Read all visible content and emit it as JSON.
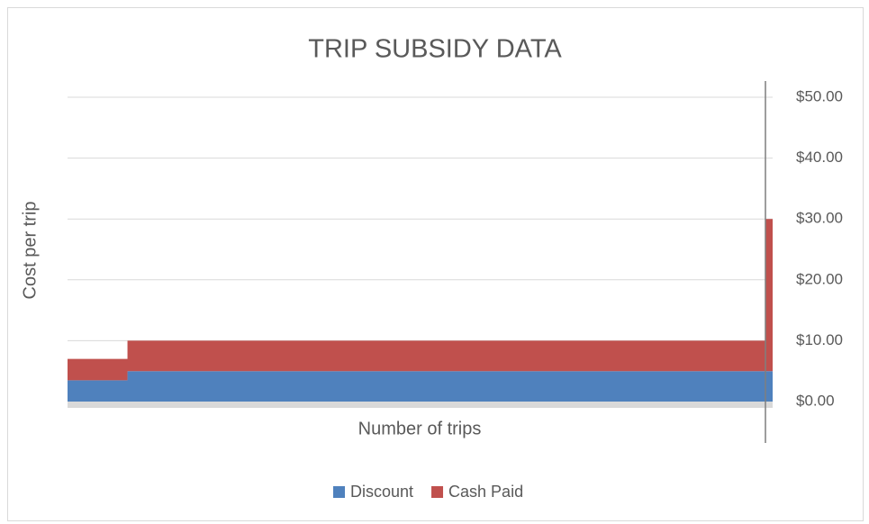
{
  "chart_data": {
    "type": "area",
    "stacked": true,
    "step": true,
    "title": "TRIP SUBSIDY DATA",
    "x_label": "Number of trips",
    "y_label": "Cost per trip",
    "x": [
      0,
      8.5,
      99,
      100
    ],
    "xlim": [
      0,
      100
    ],
    "series": [
      {
        "name": "Discount",
        "color": "#4f81bd",
        "values": [
          3.5,
          5,
          5,
          5
        ]
      },
      {
        "name": "Cash Paid",
        "color": "#c0504d",
        "values": [
          3.5,
          5,
          25,
          25
        ]
      }
    ],
    "ylim": [
      0,
      50
    ],
    "y_axis_side": "right",
    "yticks": [
      {
        "value": 0,
        "label": "$0.00"
      },
      {
        "value": 10,
        "label": "$10.00"
      },
      {
        "value": 20,
        "label": "$20.00"
      },
      {
        "value": 30,
        "label": "$30.00"
      },
      {
        "value": 40,
        "label": "$40.00"
      },
      {
        "value": 50,
        "label": "$50.00"
      }
    ],
    "grid": true,
    "legend": "bottom"
  }
}
